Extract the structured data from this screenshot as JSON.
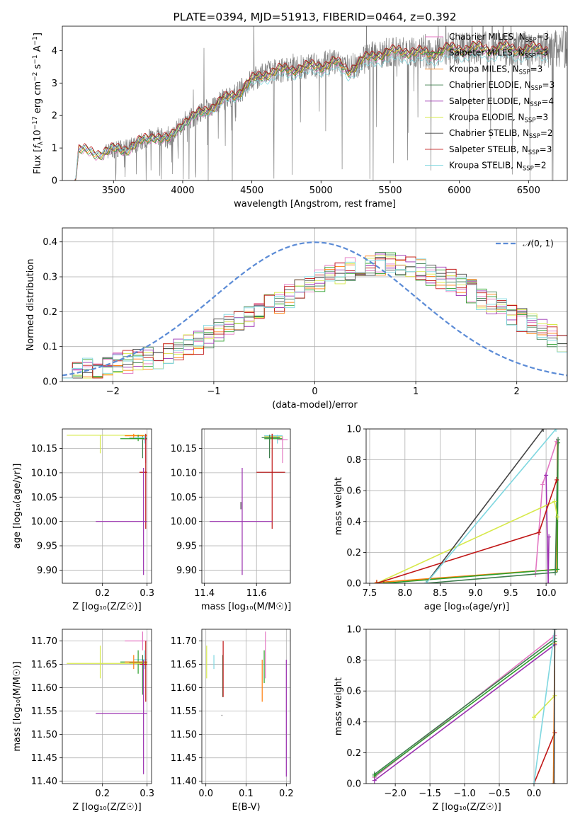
{
  "colors": {
    "Chabrier MILES": "#e377c2",
    "Salpeter MILES": "#2ca02c",
    "Kroupa MILES": "#ff7f0e",
    "Chabrier ELODIE": "#3f7f4f",
    "Salpeter ELODIE": "#9b30b0",
    "Kroupa ELODIE": "#d7e94a",
    "Chabrier STELIB": "#444444",
    "Salpeter STELIB": "#c01515",
    "Kroupa STELIB": "#7fd7e0",
    "gauss": "#5b8bd6",
    "data": "#808080"
  },
  "chart_data": [
    {
      "id": "spectrum",
      "type": "line",
      "title": "PLATE=0394, MJD=51913, FIBERID=0464, z=0.392",
      "xlabel": "wavelength [Angstrom, rest frame]",
      "ylabel": "Flux [$f_\\lambda 10^{-17}$ erg cm$^{-2}$ s$^{-1}$ A$^{-1}$]",
      "ylabel_parts": [
        "Flux [",
        "f",
        "λ",
        "10",
        "−17",
        " erg cm",
        "−2",
        " s",
        "−1",
        " A",
        "−1",
        "]"
      ],
      "xlim": [
        3130,
        6780
      ],
      "ylim": [
        0,
        4.75
      ],
      "xticks": [
        3500,
        4000,
        4500,
        5000,
        5500,
        6000,
        6500
      ],
      "yticks": [
        0,
        1,
        2,
        3,
        4
      ],
      "legend_position": "upper right",
      "legend": [
        {
          "model": "Chabrier MILES",
          "label": "Chabrier MILES, N",
          "sub": "SSP",
          "tail": "=3"
        },
        {
          "model": "Salpeter MILES",
          "label": "Salpeter MILES, N",
          "sub": "SSP",
          "tail": "=3"
        },
        {
          "model": "Kroupa MILES",
          "label": "Kroupa MILES, N",
          "sub": "SSP",
          "tail": "=3"
        },
        {
          "model": "Chabrier ELODIE",
          "label": "Chabrier ELODIE, N",
          "sub": "SSP",
          "tail": "=3"
        },
        {
          "model": "Salpeter ELODIE",
          "label": "Salpeter ELODIE, N",
          "sub": "SSP",
          "tail": "=4"
        },
        {
          "model": "Kroupa ELODIE",
          "label": "Kroupa ELODIE, N",
          "sub": "SSP",
          "tail": "=3"
        },
        {
          "model": "Chabrier STELIB",
          "label": "Chabrier STELIB, N",
          "sub": "SSP",
          "tail": "=2"
        },
        {
          "model": "Salpeter STELIB",
          "label": "Salpeter STELIB, N",
          "sub": "SSP",
          "tail": "=3"
        },
        {
          "model": "Kroupa STELIB",
          "label": "Kroupa STELIB, N",
          "sub": "SSP",
          "tail": "=2"
        }
      ],
      "continuum_x": [
        3220,
        3250,
        3300,
        3400,
        3500,
        3600,
        3700,
        3800,
        3900,
        4000,
        4100,
        4200,
        4300,
        4400,
        4500,
        4600,
        4700,
        4800,
        4900,
        5000,
        5100,
        5200,
        5300,
        5400,
        5500,
        5600,
        5700,
        5800,
        5900,
        6000,
        6100,
        6200,
        6300,
        6400,
        6500,
        6600
      ],
      "continuum_y": [
        0.0,
        0.95,
        0.9,
        0.85,
        0.95,
        1.0,
        1.2,
        1.4,
        1.25,
        1.8,
        2.0,
        2.25,
        2.5,
        2.7,
        3.1,
        3.3,
        3.4,
        3.45,
        3.5,
        3.55,
        3.65,
        3.4,
        3.7,
        3.9,
        3.95,
        4.0,
        3.95,
        3.9,
        4.05,
        4.05,
        4.1,
        4.05,
        4.1,
        4.05,
        4.05,
        4.05
      ],
      "data_x_range": [
        3430,
        6780
      ]
    },
    {
      "id": "residuals",
      "type": "bar",
      "xlabel": "(data-model)/error",
      "ylabel": "Normed distribution",
      "xlim": [
        -2.5,
        2.5
      ],
      "ylim": [
        0,
        0.44
      ],
      "xticks": [
        -2,
        -1,
        0,
        1,
        2
      ],
      "yticks": [
        0.0,
        0.1,
        0.2,
        0.3,
        0.4
      ],
      "legend": [
        {
          "label": "N(0, 1)",
          "symbol": "𝒩",
          "args": "(0, 1)"
        }
      ],
      "legend_position": "upper right",
      "bin_width": 0.1,
      "bin_start": -2.5,
      "envelope": [
        0.03,
        0.03,
        0.035,
        0.04,
        0.045,
        0.05,
        0.055,
        0.06,
        0.065,
        0.07,
        0.08,
        0.09,
        0.1,
        0.11,
        0.13,
        0.145,
        0.16,
        0.17,
        0.18,
        0.2,
        0.215,
        0.23,
        0.245,
        0.26,
        0.28,
        0.29,
        0.3,
        0.31,
        0.32,
        0.325,
        0.33,
        0.335,
        0.34,
        0.335,
        0.33,
        0.32,
        0.31,
        0.3,
        0.29,
        0.275,
        0.26,
        0.24,
        0.225,
        0.205,
        0.19,
        0.175,
        0.16,
        0.145,
        0.13,
        0.115
      ]
    },
    {
      "id": "age-vs-Z",
      "type": "scatter",
      "xlabel": "Z [log₁₀(Z/Z☉)]",
      "ylabel": "age  [log₁₀(age/yr)]",
      "xlim": [
        0.11,
        0.31
      ],
      "ylim": [
        9.873,
        10.19
      ],
      "xticks": [
        0.2,
        0.3
      ],
      "yticks": [
        9.9,
        9.95,
        10.0,
        10.05,
        10.1,
        10.15
      ],
      "points": [
        {
          "model": "Kroupa ELODIE",
          "x": 0.195,
          "xlo": 0.12,
          "xhi": 0.3,
          "y": 10.177,
          "ylo": 10.14,
          "yhi": 10.177
        },
        {
          "model": "Kroupa MILES",
          "x": 0.27,
          "xlo": 0.25,
          "xhi": 0.3,
          "y": 10.176,
          "ylo": 10.17,
          "yhi": 10.18
        },
        {
          "model": "Chabrier ELODIE",
          "x": 0.29,
          "xlo": 0.26,
          "xhi": 0.3,
          "y": 10.171,
          "ylo": 10.13,
          "yhi": 10.175
        },
        {
          "model": "Salpeter MILES",
          "x": 0.28,
          "xlo": 0.24,
          "xhi": 0.3,
          "y": 10.17,
          "ylo": 10.165,
          "yhi": 10.178
        },
        {
          "model": "Kroupa STELIB",
          "x": 0.295,
          "xlo": 0.27,
          "xhi": 0.3,
          "y": 10.172,
          "ylo": 10.16,
          "yhi": 10.178
        },
        {
          "model": "Chabrier MILES",
          "x": 0.297,
          "xlo": 0.29,
          "xhi": 0.3,
          "y": 10.168,
          "ylo": 10.12,
          "yhi": 10.175
        },
        {
          "model": "Salpeter STELIB",
          "x": 0.297,
          "xlo": 0.283,
          "xhi": 0.3,
          "y": 10.101,
          "ylo": 9.985,
          "yhi": 10.18
        },
        {
          "model": "Salpeter ELODIE",
          "x": 0.292,
          "xlo": 0.185,
          "xhi": 0.3,
          "y": 10.0,
          "ylo": 9.89,
          "yhi": 10.11
        }
      ]
    },
    {
      "id": "age-vs-mass",
      "type": "scatter",
      "xlabel": "mass [log₁₀(M/M☉)]",
      "ylabel": "",
      "xlim": [
        11.39,
        11.73
      ],
      "ylim": [
        9.873,
        10.19
      ],
      "xticks": [
        11.4,
        11.6
      ],
      "yticks": [
        9.9,
        9.95,
        10.0,
        10.05,
        10.1,
        10.15
      ],
      "points": [
        {
          "model": "Kroupa MILES",
          "x": 11.66,
          "xlo": 11.63,
          "xhi": 11.69,
          "y": 10.176,
          "ylo": 10.17,
          "yhi": 10.18
        },
        {
          "model": "Kroupa ELODIE",
          "x": 11.65,
          "xlo": 11.63,
          "xhi": 11.7,
          "y": 10.174,
          "ylo": 10.14,
          "yhi": 10.178
        },
        {
          "model": "Kroupa STELIB",
          "x": 11.68,
          "xlo": 11.63,
          "xhi": 11.7,
          "y": 10.176,
          "ylo": 10.16,
          "yhi": 10.178
        },
        {
          "model": "Salpeter MILES",
          "x": 11.65,
          "xlo": 11.63,
          "xhi": 11.7,
          "y": 10.17,
          "ylo": 10.16,
          "yhi": 10.178
        },
        {
          "model": "Chabrier ELODIE",
          "x": 11.65,
          "xlo": 11.62,
          "xhi": 11.69,
          "y": 10.172,
          "ylo": 10.13,
          "yhi": 10.178
        },
        {
          "model": "Chabrier MILES",
          "x": 11.7,
          "xlo": 11.68,
          "xhi": 11.72,
          "y": 10.168,
          "ylo": 10.12,
          "yhi": 10.175
        },
        {
          "model": "Salpeter STELIB",
          "x": 11.66,
          "xlo": 11.6,
          "xhi": 11.71,
          "y": 10.101,
          "ylo": 9.985,
          "yhi": 10.18
        },
        {
          "model": "Salpeter ELODIE",
          "x": 11.545,
          "xlo": 11.42,
          "xhi": 11.66,
          "y": 10.0,
          "ylo": 9.89,
          "yhi": 10.11
        },
        {
          "model": "Chabrier STELIB",
          "x": 11.54,
          "xlo": 11.54,
          "xhi": 11.54,
          "y": 10.03,
          "ylo": 10.025,
          "yhi": 10.04
        }
      ]
    },
    {
      "id": "weight-vs-age",
      "type": "line",
      "xlabel": "age  [log₁₀(age/yr)]",
      "ylabel": "mass weight",
      "xlim": [
        7.45,
        10.3
      ],
      "ylim": [
        0,
        1
      ],
      "xticks": [
        7.5,
        8.0,
        8.5,
        9.0,
        9.5,
        10.0
      ],
      "yticks": [
        0.0,
        0.2,
        0.4,
        0.6,
        0.8,
        1.0
      ],
      "series": [
        {
          "model": "Kroupa MILES",
          "x": [
            7.6,
            10.15,
            10.16
          ],
          "y": [
            0.005,
            0.09,
            0.91
          ]
        },
        {
          "model": "Salpeter MILES",
          "x": [
            7.7,
            10.16,
            10.17
          ],
          "y": [
            0.0,
            0.09,
            0.91
          ]
        },
        {
          "model": "Chabrier MILES",
          "x": [
            9.85,
            9.95,
            10.15
          ],
          "y": [
            0.06,
            0.64,
            0.92
          ]
        },
        {
          "model": "Chabrier ELODIE",
          "x": [
            8.3,
            10.13,
            10.17
          ],
          "y": [
            0.0,
            0.07,
            0.93
          ]
        },
        {
          "model": "Salpeter ELODIE",
          "x": [
            10.0,
            10.03,
            10.04
          ],
          "y": [
            0.7,
            0.0,
            0.3
          ]
        },
        {
          "model": "Kroupa ELODIE",
          "x": [
            7.6,
            10.12,
            10.16
          ],
          "y": [
            0.0,
            0.53,
            0.43
          ]
        },
        {
          "model": "Chabrier STELIB",
          "x": [
            8.3,
            9.96
          ],
          "y": [
            0.0,
            1.0
          ]
        },
        {
          "model": "Salpeter STELIB",
          "x": [
            7.6,
            9.9,
            10.15
          ],
          "y": [
            0.0,
            0.33,
            0.67
          ]
        },
        {
          "model": "Kroupa STELIB",
          "x": [
            8.3,
            10.14
          ],
          "y": [
            0.0,
            1.0
          ]
        }
      ]
    },
    {
      "id": "mass-vs-Z",
      "type": "scatter",
      "xlabel": "Z [log₁₀(Z/Z☉)]",
      "ylabel": "mass [log₁₀(M/M☉)]",
      "xlim": [
        0.11,
        0.31
      ],
      "ylim": [
        11.395,
        11.725
      ],
      "xticks": [
        0.2,
        0.3
      ],
      "yticks": [
        11.4,
        11.45,
        11.5,
        11.55,
        11.6,
        11.65,
        11.7
      ],
      "points": [
        {
          "model": "Chabrier MILES",
          "x": 0.29,
          "xlo": 0.25,
          "xhi": 0.3,
          "y": 11.7,
          "ylo": 11.68,
          "yhi": 11.72
        },
        {
          "model": "Kroupa STELIB",
          "x": 0.295,
          "xlo": 0.27,
          "xhi": 0.3,
          "y": 11.66,
          "ylo": 11.64,
          "yhi": 11.68
        },
        {
          "model": "Salpeter MILES",
          "x": 0.28,
          "xlo": 0.24,
          "xhi": 0.3,
          "y": 11.655,
          "ylo": 11.63,
          "yhi": 11.68
        },
        {
          "model": "Kroupa ELODIE",
          "x": 0.195,
          "xlo": 0.12,
          "xhi": 0.3,
          "y": 11.652,
          "ylo": 11.62,
          "yhi": 11.69
        },
        {
          "model": "Chabrier ELODIE",
          "x": 0.29,
          "xlo": 0.26,
          "xhi": 0.3,
          "y": 11.654,
          "ylo": 11.585,
          "yhi": 11.67
        },
        {
          "model": "Kroupa MILES",
          "x": 0.27,
          "xlo": 0.25,
          "xhi": 0.3,
          "y": 11.655,
          "ylo": 11.64,
          "yhi": 11.67
        },
        {
          "model": "Salpeter STELIB",
          "x": 0.297,
          "xlo": 0.283,
          "xhi": 0.3,
          "y": 11.65,
          "ylo": 11.57,
          "yhi": 11.7
        },
        {
          "model": "Salpeter ELODIE",
          "x": 0.292,
          "xlo": 0.185,
          "xhi": 0.3,
          "y": 11.545,
          "ylo": 11.415,
          "yhi": 11.66
        }
      ]
    },
    {
      "id": "mass-vs-EBV",
      "type": "scatter",
      "xlabel": "E(B-V)",
      "ylabel": "",
      "xlim": [
        -0.01,
        0.21
      ],
      "ylim": [
        11.395,
        11.725
      ],
      "xticks": [
        0.0,
        0.1,
        0.2
      ],
      "yticks": [
        11.4,
        11.45,
        11.5,
        11.55,
        11.6,
        11.65,
        11.7
      ],
      "points": [
        {
          "model": "Kroupa ELODIE",
          "x": 0.002,
          "ylo": 11.62,
          "yhi": 11.69
        },
        {
          "model": "Kroupa STELIB",
          "x": 0.02,
          "ylo": 11.64,
          "yhi": 11.67
        },
        {
          "model": "Chabrier ELODIE",
          "x": 0.042,
          "ylo": 11.58,
          "yhi": 11.67
        },
        {
          "model": "Salpeter STELIB",
          "x": 0.043,
          "ylo": 11.58,
          "yhi": 11.7
        },
        {
          "model": "Chabrier STELIB",
          "x": 0.04,
          "ylo": 11.54,
          "yhi": 11.542
        },
        {
          "model": "Kroupa MILES",
          "x": 0.14,
          "ylo": 11.57,
          "yhi": 11.66
        },
        {
          "model": "Salpeter MILES",
          "x": 0.145,
          "ylo": 11.61,
          "yhi": 11.68
        },
        {
          "model": "Chabrier MILES",
          "x": 0.148,
          "ylo": 11.62,
          "yhi": 11.72
        },
        {
          "model": "Salpeter ELODIE",
          "x": 0.2,
          "ylo": 11.41,
          "yhi": 11.66
        }
      ]
    },
    {
      "id": "weight-vs-Z",
      "type": "line",
      "xlabel": "Z [log₁₀(Z/Z☉)]",
      "ylabel": "mass weight",
      "xlim": [
        -2.42,
        0.48
      ],
      "ylim": [
        0,
        1
      ],
      "xticks": [
        -2.0,
        -1.5,
        -1.0,
        -0.5,
        0.0
      ],
      "yticks": [
        0.0,
        0.2,
        0.4,
        0.6,
        0.8,
        1.0
      ],
      "series": [
        {
          "model": "Chabrier MILES",
          "x": [
            -2.3,
            0.3
          ],
          "y": [
            0.04,
            0.96
          ]
        },
        {
          "model": "Chabrier ELODIE",
          "x": [
            -2.3,
            0.3
          ],
          "y": [
            0.06,
            0.94
          ]
        },
        {
          "model": "Salpeter MILES",
          "x": [
            -2.3,
            0.3
          ],
          "y": [
            0.05,
            0.92
          ]
        },
        {
          "model": "Salpeter ELODIE",
          "x": [
            -2.3,
            0.3
          ],
          "y": [
            0.02,
            0.9
          ]
        },
        {
          "model": "Kroupa ELODIE",
          "x": [
            0.0,
            0.3
          ],
          "y": [
            0.43,
            0.57
          ]
        },
        {
          "model": "Salpeter STELIB",
          "x": [
            0.0,
            0.3
          ],
          "y": [
            0.0,
            0.33
          ]
        },
        {
          "model": "Kroupa STELIB",
          "x": [
            0.0,
            0.3
          ],
          "y": [
            0.0,
            1.0
          ]
        },
        {
          "model": "Kroupa MILES",
          "x": [
            0.28,
            0.3
          ],
          "y": [
            0.0,
            0.91
          ]
        },
        {
          "model": "Chabrier STELIB",
          "x": [
            0.29,
            0.3
          ],
          "y": [
            0.0,
            1.0
          ]
        }
      ]
    }
  ]
}
